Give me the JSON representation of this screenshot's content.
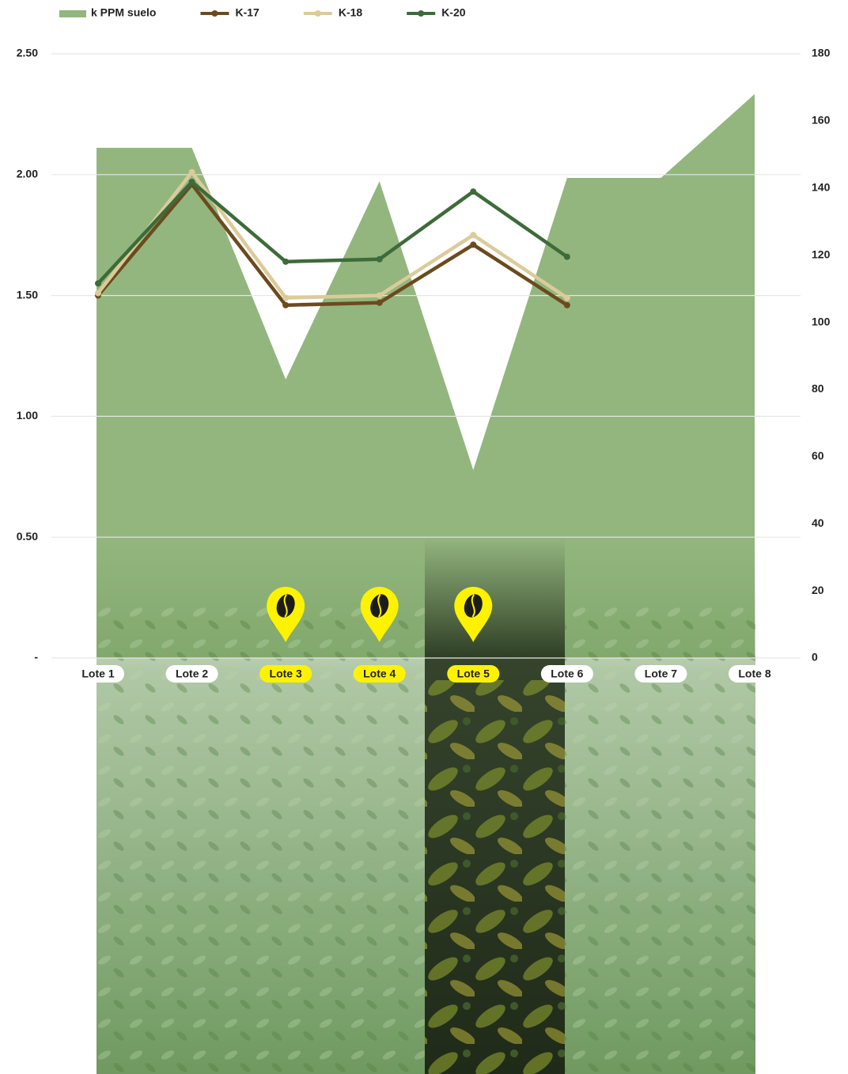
{
  "chart_data": {
    "type": "area-line",
    "categories": [
      "Lote 1",
      "Lote 2",
      "Lote 3",
      "Lote 4",
      "Lote 5",
      "Lote 6",
      "Lote 7",
      "Lote 8"
    ],
    "highlighted": [
      false,
      false,
      true,
      true,
      true,
      false,
      false,
      false
    ],
    "highlight_color": "#fff200",
    "series": [
      {
        "name": "k PPM suelo",
        "kind": "area",
        "axis": "y2",
        "color": "#93b67e",
        "values": [
          152,
          152,
          83,
          142,
          56,
          143,
          143,
          168
        ]
      },
      {
        "name": "K-17",
        "kind": "line",
        "axis": "y",
        "color": "#6b4a1e",
        "values": [
          1.5,
          1.96,
          1.46,
          1.47,
          1.71,
          1.46,
          null,
          null
        ]
      },
      {
        "name": "K-18",
        "kind": "line",
        "axis": "y",
        "color": "#dccb9a",
        "values": [
          1.51,
          2.01,
          1.49,
          1.5,
          1.75,
          1.49,
          null,
          null
        ]
      },
      {
        "name": "K-20",
        "kind": "line",
        "axis": "y",
        "color": "#3d6b3a",
        "values": [
          1.55,
          1.97,
          1.64,
          1.65,
          1.93,
          1.66,
          null,
          null
        ]
      }
    ],
    "ylim": [
      0,
      2.5
    ],
    "yticks": [
      {
        "value": 0,
        "label": "-"
      },
      {
        "value": 0.5,
        "label": "0.50"
      },
      {
        "value": 1,
        "label": "1.00"
      },
      {
        "value": 1.5,
        "label": "1.50"
      },
      {
        "value": 2,
        "label": "2.00"
      },
      {
        "value": 2.5,
        "label": "2.50"
      }
    ],
    "y2lim": [
      0,
      180
    ],
    "y2ticks": [
      0,
      20,
      40,
      60,
      80,
      100,
      120,
      140,
      160,
      180
    ],
    "grid": true,
    "legend": "top-left"
  }
}
